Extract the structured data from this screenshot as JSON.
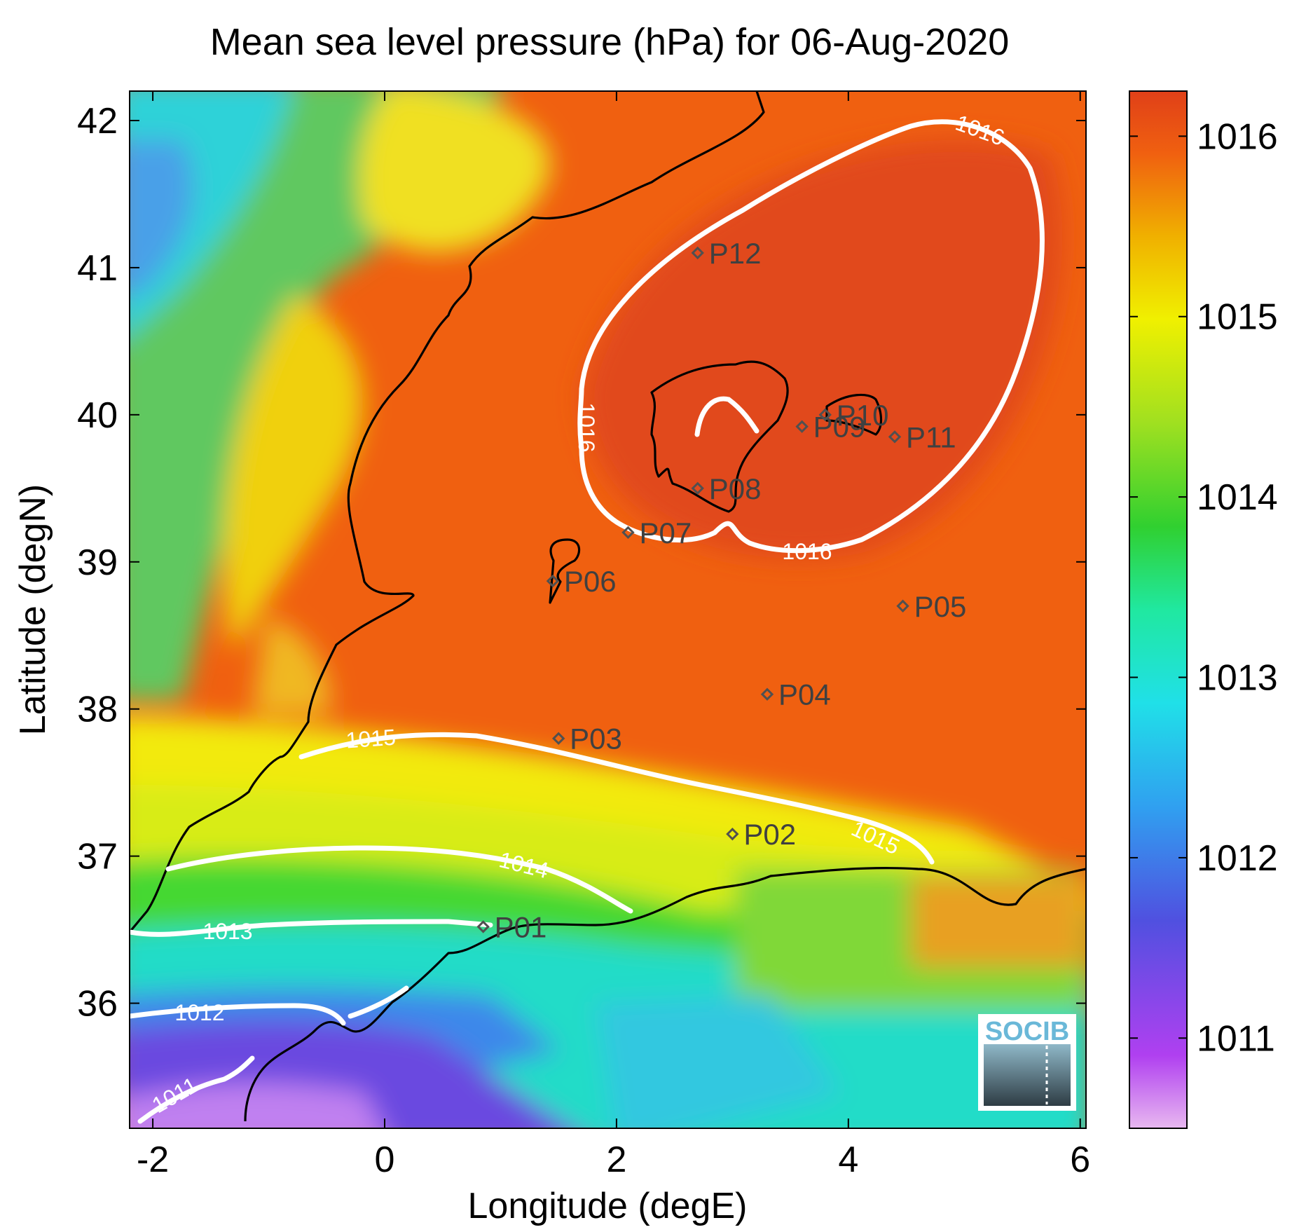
{
  "title": "Mean sea level pressure (hPa) for 06-Aug-2020",
  "x_axis": {
    "label": "Longitude (degE)",
    "range": [
      -2.2,
      6.05
    ],
    "ticks": [
      -2,
      0,
      2,
      4,
      6
    ],
    "tick_labels": [
      "-2",
      "0",
      "2",
      "4",
      "6"
    ]
  },
  "y_axis": {
    "label": "Latitude (degN)",
    "range": [
      35.15,
      42.2
    ],
    "ticks": [
      36,
      37,
      38,
      39,
      40,
      41,
      42
    ],
    "tick_labels": [
      "36",
      "37",
      "38",
      "39",
      "40",
      "41",
      "42"
    ]
  },
  "colorbar": {
    "range": [
      1010.5,
      1016.25
    ],
    "ticks": [
      1011,
      1012,
      1013,
      1014,
      1015,
      1016
    ],
    "tick_labels": [
      "1011",
      "1012",
      "1013",
      "1014",
      "1015",
      "1016"
    ],
    "colormap": [
      "#e8b8f0",
      "#b040f0",
      "#5050e0",
      "#30a0f0",
      "#20e0e8",
      "#20e8a0",
      "#30d030",
      "#a0e020",
      "#f0f000",
      "#f0b000",
      "#f06010",
      "#e04018"
    ]
  },
  "contours": [
    {
      "level": "1011",
      "label": "1011"
    },
    {
      "level": "1012",
      "label": "1012"
    },
    {
      "level": "1013",
      "label": "1013"
    },
    {
      "level": "1014",
      "label": "1014"
    },
    {
      "level": "1015",
      "label": "1015"
    },
    {
      "level": "1016",
      "label": "1016"
    }
  ],
  "stations": [
    {
      "name": "P01",
      "lon": 0.85,
      "lat": 36.52
    },
    {
      "name": "P02",
      "lon": 3.0,
      "lat": 37.15
    },
    {
      "name": "P03",
      "lon": 1.5,
      "lat": 37.8
    },
    {
      "name": "P04",
      "lon": 3.3,
      "lat": 38.1
    },
    {
      "name": "P05",
      "lon": 4.47,
      "lat": 38.7
    },
    {
      "name": "P06",
      "lon": 1.45,
      "lat": 38.87
    },
    {
      "name": "P07",
      "lon": 2.1,
      "lat": 39.2
    },
    {
      "name": "P08",
      "lon": 2.7,
      "lat": 39.5
    },
    {
      "name": "P09",
      "lon": 3.6,
      "lat": 39.92
    },
    {
      "name": "P10",
      "lon": 3.8,
      "lat": 40.0
    },
    {
      "name": "P11",
      "lon": 4.4,
      "lat": 39.85
    },
    {
      "name": "P12",
      "lon": 2.7,
      "lat": 41.1
    }
  ],
  "logo": {
    "text": "SOCIB"
  },
  "colors": {
    "contour": "#ffffff",
    "coastline": "#000000",
    "station_marker": "#505050",
    "station_label": "#404040",
    "logo_text": "#6ab8d8"
  }
}
